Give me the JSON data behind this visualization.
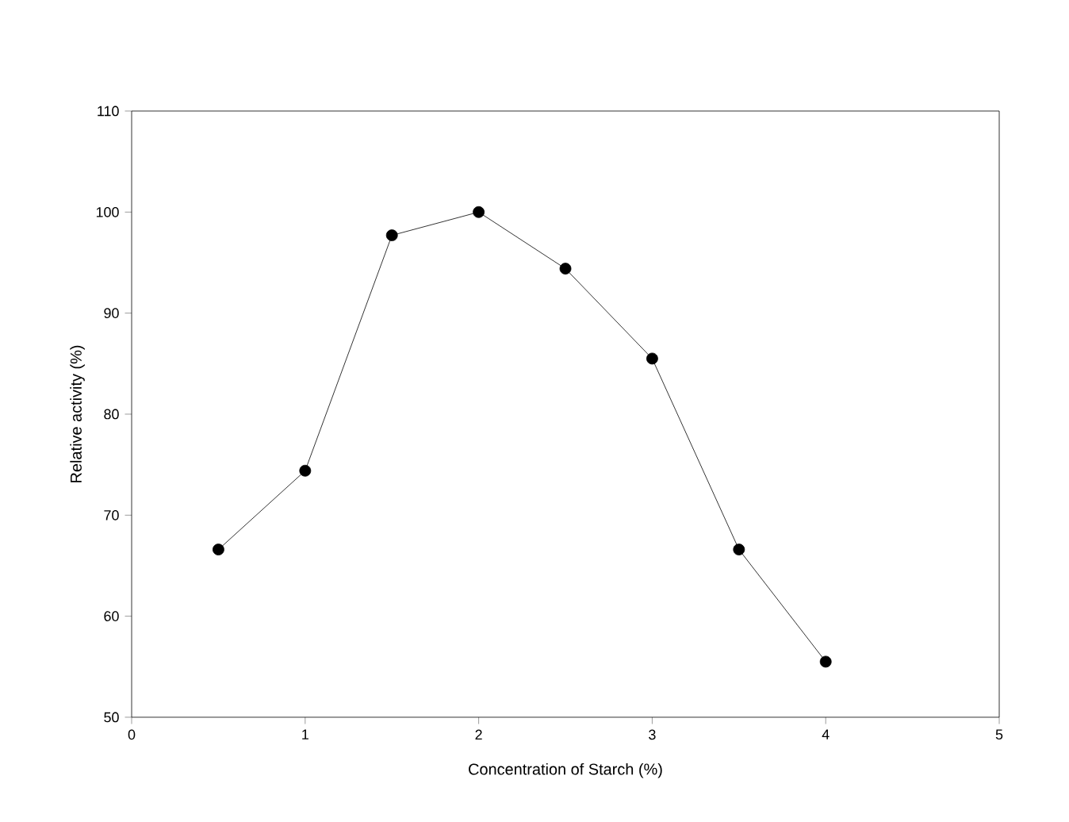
{
  "chart_data": {
    "type": "line",
    "xlabel": "Concentration of Starch (%)",
    "ylabel": "Relative activity (%)",
    "x": [
      0.5,
      1,
      1.5,
      2,
      2.5,
      3,
      3.5,
      4
    ],
    "series": [
      {
        "color": "#000000",
        "values": [
          66.6,
          74.4,
          97.7,
          100,
          94.4,
          85.5,
          66.6,
          55.5
        ]
      }
    ],
    "xlim": [
      0,
      5
    ],
    "xticks": [
      0,
      1,
      2,
      3,
      4,
      5
    ],
    "ylim": [
      50,
      110
    ],
    "yticks": [
      50,
      60,
      70,
      80,
      90,
      100,
      110
    ],
    "marker": "circle",
    "line_style": "solid"
  }
}
